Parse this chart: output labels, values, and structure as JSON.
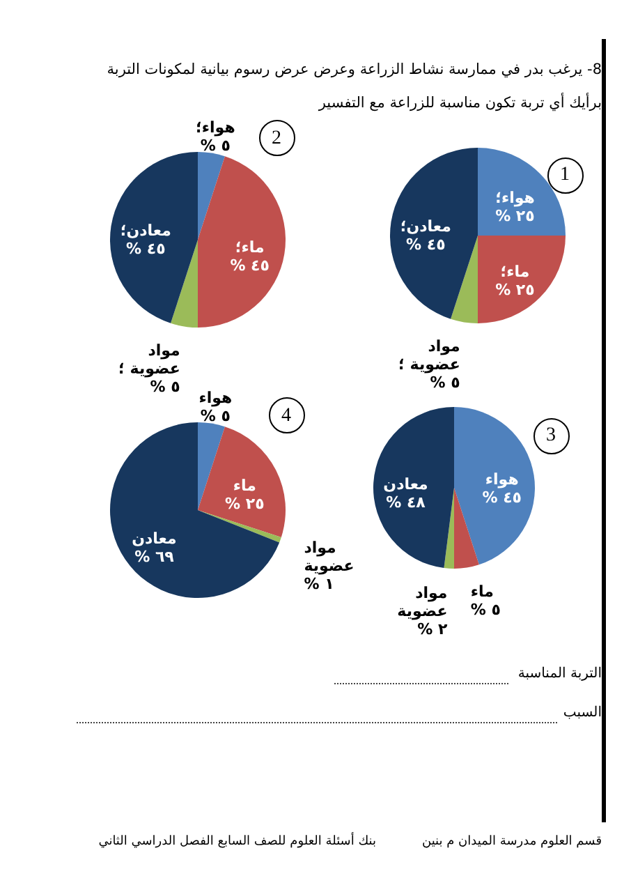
{
  "chart_data": [
    {
      "type": "other",
      "title": "8- يرغب بدر في ممارسة نشاط الزراعة وعرض عرض رسوم بيانية لمكونات التربة",
      "subtitle": "برأيك أي تربة تكون مناسبة للزراعة مع التفسير"
    },
    {
      "type": "pie",
      "title": "1",
      "categories": [
        "هواء؛",
        "ماء؛",
        "مواد عضوية ؛",
        "معادن؛"
      ],
      "values": [
        25,
        25,
        5,
        45
      ],
      "colors": [
        "#4f81bd",
        "#c0504d",
        "#9bbb59",
        "#17375e"
      ],
      "value_labels": [
        "٢٥ %",
        "٢٥ %",
        "٥ %",
        "٤٥ %"
      ]
    },
    {
      "type": "pie",
      "title": "2",
      "categories": [
        "هواء؛",
        "ماء؛",
        "مواد عضوية ؛",
        "معادن؛"
      ],
      "values": [
        5,
        45,
        5,
        45
      ],
      "colors": [
        "#4f81bd",
        "#c0504d",
        "#9bbb59",
        "#17375e"
      ],
      "value_labels": [
        "٥ %",
        "٤٥ %",
        "٥ %",
        "٤٥ %"
      ]
    },
    {
      "type": "pie",
      "title": "3",
      "categories": [
        "هواء",
        "ماء",
        "مواد عضوية",
        "معادن"
      ],
      "values": [
        45,
        5,
        2,
        48
      ],
      "colors": [
        "#4f81bd",
        "#c0504d",
        "#9bbb59",
        "#17375e"
      ],
      "value_labels": [
        "٤٥ %",
        "٥ %",
        "٢ %",
        "٤٨ %"
      ]
    },
    {
      "type": "pie",
      "title": "4",
      "categories": [
        "هواء",
        "ماء",
        "مواد عضوية",
        "معادن"
      ],
      "values": [
        5,
        25,
        1,
        69
      ],
      "colors": [
        "#4f81bd",
        "#c0504d",
        "#9bbb59",
        "#17375e"
      ],
      "value_labels": [
        "٥ %",
        "٢٥ %",
        "١ %",
        "٦٩ %"
      ]
    },
    {
      "type": "other",
      "annotations": [
        "التربة المناسبة",
        "السبب",
        "قسم العلوم مدرسة الميدان م بنين",
        "بنك أسئلة العلوم للصف السابع الفصل الدراسي الثاني"
      ]
    }
  ]
}
